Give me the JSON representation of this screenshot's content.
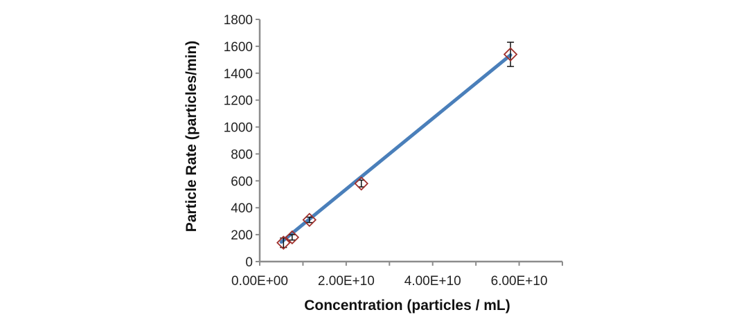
{
  "chart_data": {
    "type": "scatter",
    "title": "",
    "xlabel": "Concentration  (particles / mL)",
    "ylabel": "Particle Rate (particles/min)",
    "xlim": [
      0,
      70000000000
    ],
    "ylim": [
      0,
      1800
    ],
    "x_tick_values": [
      0,
      20000000000,
      40000000000,
      60000000000
    ],
    "x_tick_labels": [
      "0.00E+00",
      "2.00E+10",
      "4.00E+10",
      "6.00E+10"
    ],
    "y_tick_values": [
      0,
      200,
      400,
      600,
      800,
      1000,
      1200,
      1400,
      1600,
      1800
    ],
    "y_tick_labels": [
      "0",
      "200",
      "400",
      "600",
      "800",
      "1000",
      "1200",
      "1400",
      "1600",
      "1800"
    ],
    "grid": false,
    "legend": "none",
    "series": [
      {
        "marker": "diamond",
        "color": "#a0302c",
        "points": [
          {
            "x": 5500000000,
            "y": 140,
            "err": 35
          },
          {
            "x": 7500000000,
            "y": 180,
            "err": 20
          },
          {
            "x": 11500000000,
            "y": 310,
            "err": 20
          },
          {
            "x": 23500000000,
            "y": 580,
            "err": 25
          },
          {
            "x": 58000000000,
            "y": 1540,
            "err": 90
          }
        ]
      }
    ],
    "trendline": {
      "type": "linear",
      "color": "#4a7fba",
      "from": {
        "x": 5000000000,
        "y": 145
      },
      "to": {
        "x": 58000000000,
        "y": 1535
      }
    },
    "colors": {
      "axis": "#8c8c8c",
      "error_bar": "#111111"
    }
  }
}
